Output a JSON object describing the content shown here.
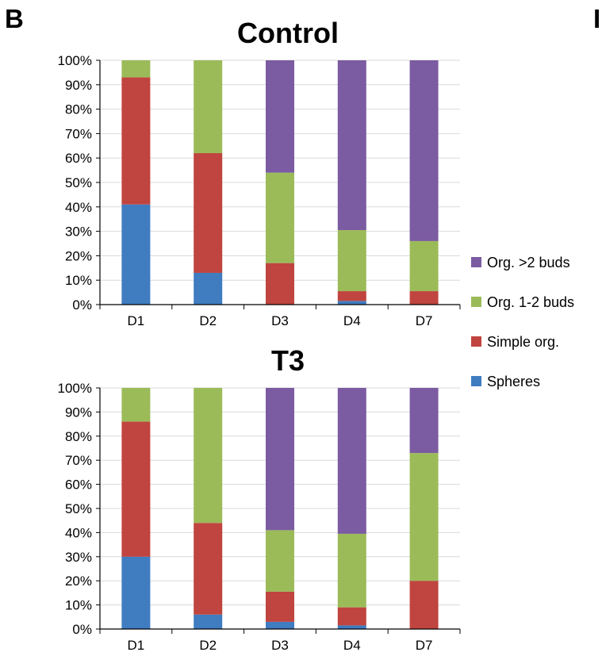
{
  "figure": {
    "panel_label": "B",
    "next_panel_label": "I"
  },
  "legend": {
    "placement": "right",
    "entries": [
      {
        "label": "Org. >2 buds",
        "color": "#7B5BA1"
      },
      {
        "label": "Org. 1-2 buds",
        "color": "#9BBB59"
      },
      {
        "label": "Simple org.",
        "color": "#C0443F"
      },
      {
        "label": "Spheres",
        "color": "#3F7CC0"
      }
    ]
  },
  "chart_data": [
    {
      "type": "bar",
      "stacked": true,
      "title": "Control",
      "xlabel": "",
      "ylabel": "",
      "categories": [
        "D1",
        "D2",
        "D3",
        "D4",
        "D7"
      ],
      "ylim": [
        0,
        100
      ],
      "yticks": [
        "0%",
        "10%",
        "20%",
        "30%",
        "40%",
        "50%",
        "60%",
        "70%",
        "80%",
        "90%",
        "100%"
      ],
      "grid": true,
      "series": [
        {
          "name": "Spheres",
          "color": "#3F7CC0",
          "values": [
            41,
            13,
            0,
            1.5,
            0
          ]
        },
        {
          "name": "Simple org.",
          "color": "#C0443F",
          "values": [
            52,
            49,
            17,
            4,
            5.5
          ]
        },
        {
          "name": "Org. 1-2 buds",
          "color": "#9BBB59",
          "values": [
            7,
            38,
            37,
            25,
            20.5
          ]
        },
        {
          "name": "Org. >2 buds",
          "color": "#7B5BA1",
          "values": [
            0,
            0,
            46,
            69.5,
            74
          ]
        }
      ]
    },
    {
      "type": "bar",
      "stacked": true,
      "title": "T3",
      "xlabel": "",
      "ylabel": "",
      "categories": [
        "D1",
        "D2",
        "D3",
        "D4",
        "D7"
      ],
      "ylim": [
        0,
        100
      ],
      "yticks": [
        "0%",
        "10%",
        "20%",
        "30%",
        "40%",
        "50%",
        "60%",
        "70%",
        "80%",
        "90%",
        "100%"
      ],
      "grid": true,
      "series": [
        {
          "name": "Spheres",
          "color": "#3F7CC0",
          "values": [
            30,
            6,
            3,
            1.5,
            0
          ]
        },
        {
          "name": "Simple org.",
          "color": "#C0443F",
          "values": [
            56,
            38,
            12.5,
            7.5,
            20
          ]
        },
        {
          "name": "Org. 1-2 buds",
          "color": "#9BBB59",
          "values": [
            14,
            56,
            25.5,
            30.5,
            53
          ]
        },
        {
          "name": "Org. >2 buds",
          "color": "#7B5BA1",
          "values": [
            0,
            0,
            59,
            60.5,
            27
          ]
        }
      ]
    }
  ]
}
